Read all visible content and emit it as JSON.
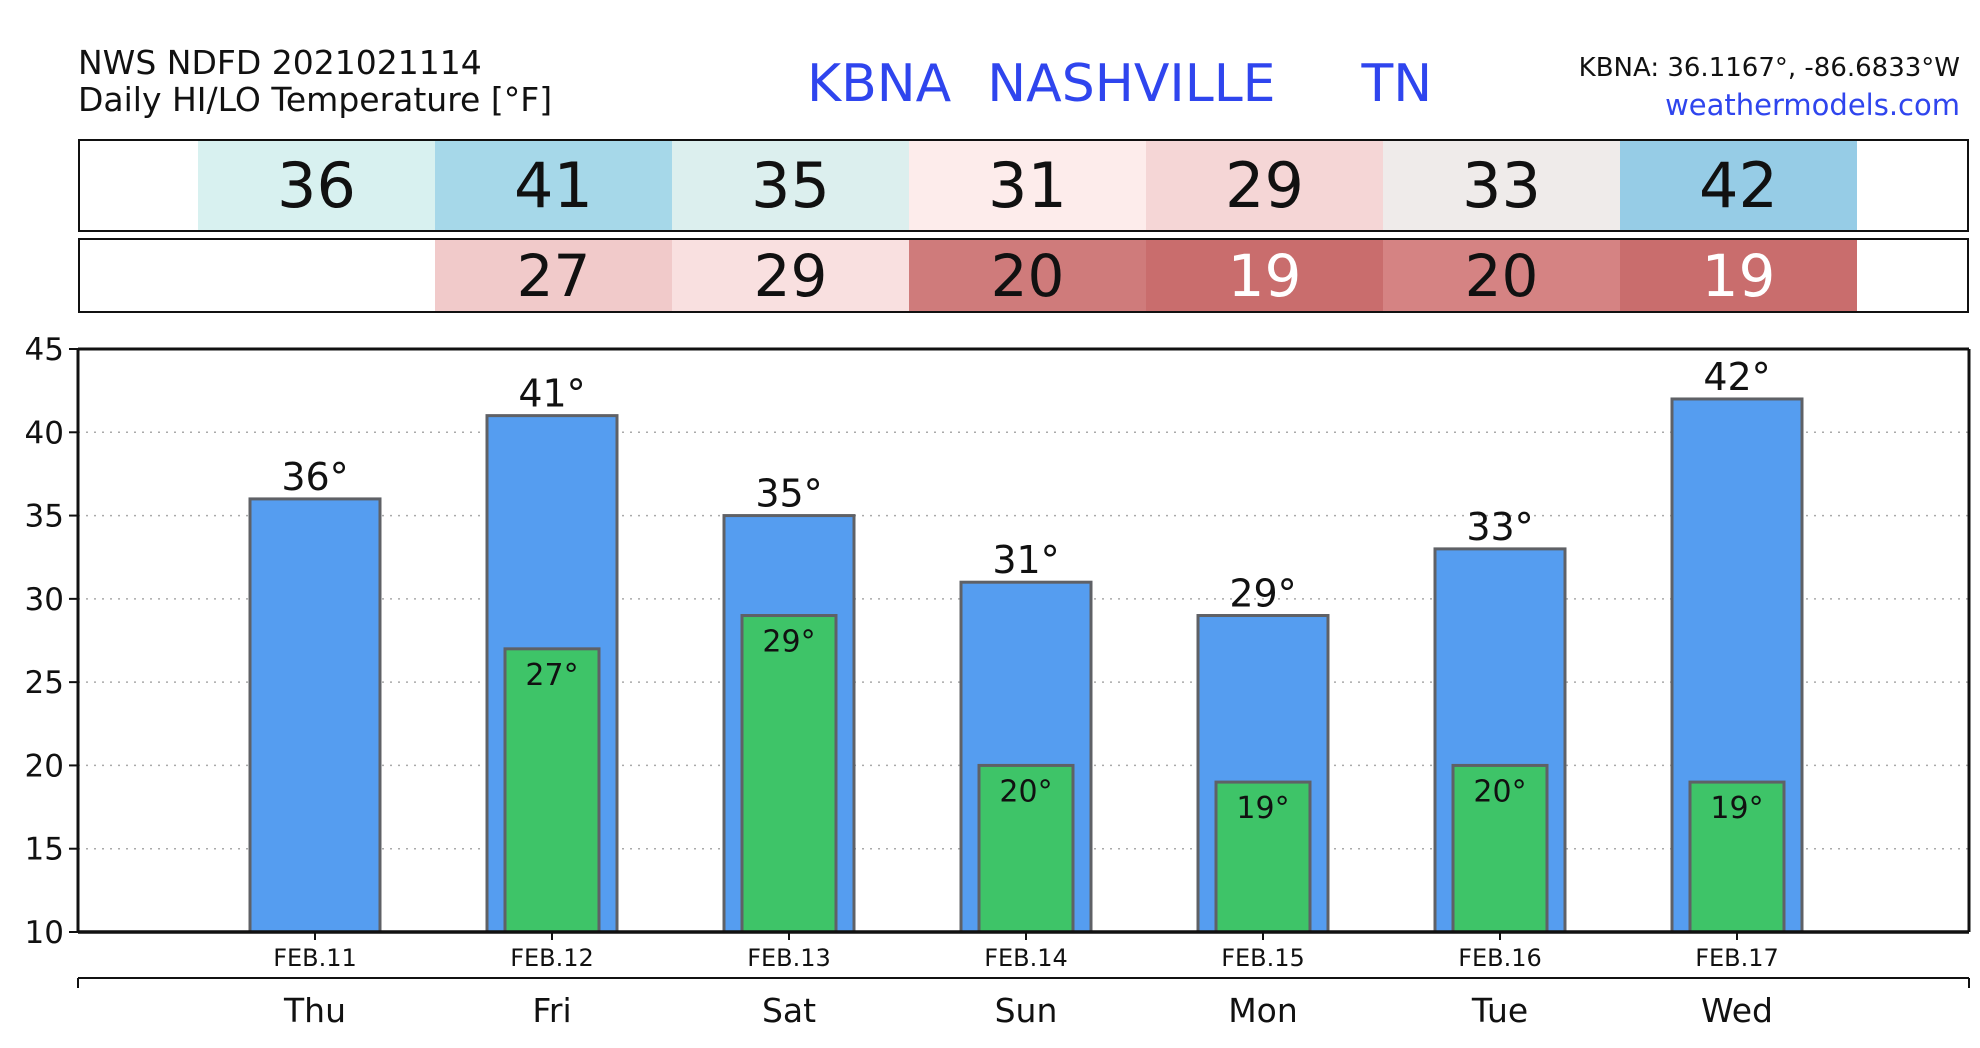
{
  "header": {
    "model_line": "NWS NDFD 2021021114",
    "product_line": "Daily HI/LO Temperature [°F]",
    "station_id": "KBNA",
    "station_name": "NASHVILLE",
    "station_state": "TN",
    "coords": "KBNA: 36.1167°, -86.6833°W",
    "site": "weathermodels.com"
  },
  "table": {
    "hi": [
      {
        "value": "36",
        "color": "#d8f1f0"
      },
      {
        "value": "41",
        "color": "#a6d8e9"
      },
      {
        "value": "35",
        "color": "#dcefee"
      },
      {
        "value": "31",
        "color": "#fdeceb"
      },
      {
        "value": "29",
        "color": "#f5d6d6"
      },
      {
        "value": "33",
        "color": "#efebea"
      },
      {
        "value": "42",
        "color": "#96cce6"
      }
    ],
    "lo": [
      {
        "value": "",
        "color": "#ffffff"
      },
      {
        "value": "27",
        "color": "#f1caca",
        "text_color": "#111111"
      },
      {
        "value": "29",
        "color": "#f9e0e0",
        "text_color": "#111111"
      },
      {
        "value": "20",
        "color": "#cf7b7b",
        "text_color": "#111111"
      },
      {
        "value": "19",
        "color": "#c96d6d",
        "text_color": "#ffffff"
      },
      {
        "value": "20",
        "color": "#d58383",
        "text_color": "#111111"
      },
      {
        "value": "19",
        "color": "#c96d6d",
        "text_color": "#ffffff"
      }
    ]
  },
  "chart_data": {
    "type": "bar",
    "categories": [
      "FEB.11",
      "FEB.12",
      "FEB.13",
      "FEB.14",
      "FEB.15",
      "FEB.16",
      "FEB.17"
    ],
    "days": [
      "Thu",
      "Fri",
      "Sat",
      "Sun",
      "Mon",
      "Tue",
      "Wed"
    ],
    "series": [
      {
        "values": [
          36,
          41,
          35,
          31,
          29,
          33,
          42
        ],
        "labels": [
          "36°",
          "41°",
          "35°",
          "31°",
          "29°",
          "33°",
          "42°"
        ],
        "color": "#559df0"
      },
      {
        "values": [
          null,
          27,
          29,
          20,
          19,
          20,
          19
        ],
        "labels": [
          "",
          "27°",
          "29°",
          "20°",
          "19°",
          "20°",
          "19°"
        ],
        "color": "#3ec468"
      }
    ],
    "yticks": [
      10,
      15,
      20,
      25,
      30,
      35,
      40,
      45
    ],
    "ylim": [
      10,
      45
    ],
    "grid": true,
    "bar_edge_color": "#5f6166"
  }
}
